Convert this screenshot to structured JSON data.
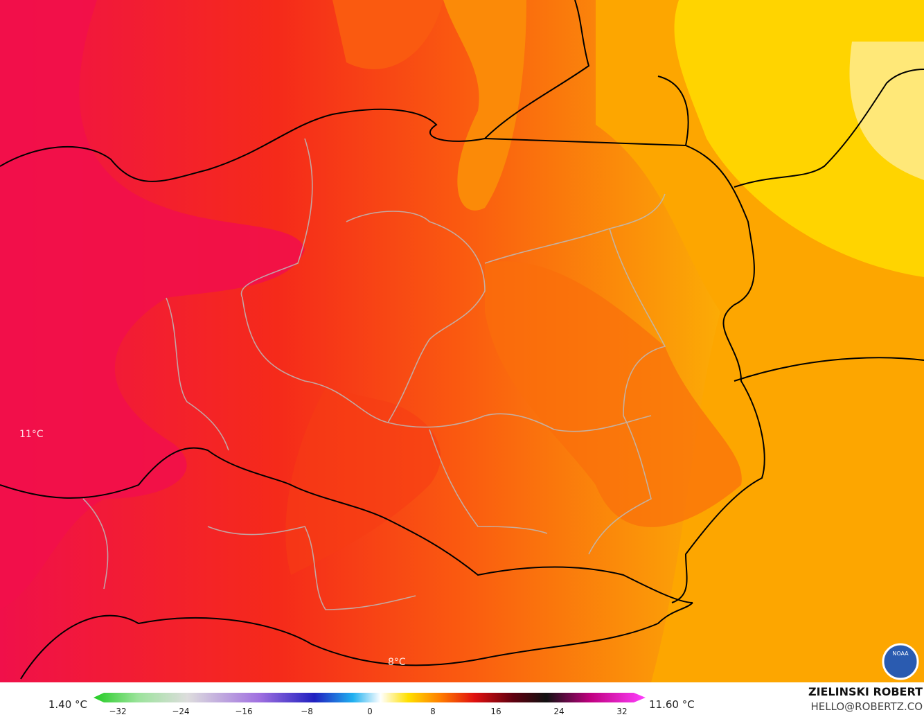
{
  "map": {
    "labels": [
      "11°C",
      "8°C"
    ]
  },
  "legend": {
    "min_label": "1.40 °C",
    "max_label": "11.60 °C",
    "ticks": [
      "−32",
      "−24",
      "−16",
      "−8",
      "0",
      "8",
      "16",
      "24",
      "32"
    ]
  },
  "credit": {
    "name": "ZIELINSKI ROBERT",
    "contact": "HELLO@ROBERTZ.CO",
    "logo": "NOAA"
  }
}
